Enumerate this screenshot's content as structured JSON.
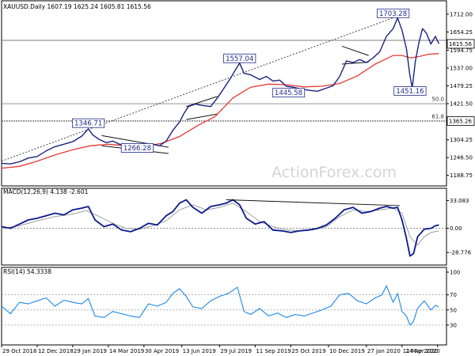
{
  "header": {
    "main": "XAUUSD.Daily  1607.19 1625.24 1605.81 1615.56",
    "macd": "MACD(12,26,9) 4.138 -2.601",
    "rsi": "RSI(14) 54.3338"
  },
  "watermark": "ActionForex.com",
  "colors": {
    "price": "#1a237e",
    "ema": "#e53935",
    "macd": "#0d1a8c",
    "signal": "#9e9e9e",
    "rsi": "#1e88e5",
    "bg": "#ffffff"
  },
  "chart_data": [
    {
      "type": "line",
      "name": "price",
      "ylim": [
        1170,
        1740
      ],
      "y_ticks": [
        "1712.00",
        "1654.25",
        "1594.75",
        "1537.00",
        "1479.25",
        "1421.50",
        "1365.26",
        "1304.25",
        "1246.50",
        "1188.75"
      ],
      "x_range": [
        0,
        100
      ],
      "x_ticks": [
        {
          "x": 0,
          "label": "29 Oct 2018"
        },
        {
          "x": 8,
          "label": "12 Dec 2018"
        },
        {
          "x": 16,
          "label": "29 Jan 2019"
        },
        {
          "x": 24,
          "label": "14 Mar 2019"
        },
        {
          "x": 32,
          "label": "30 Apr 2019"
        },
        {
          "x": 40.5,
          "label": "13 Jun 2019"
        },
        {
          "x": 49,
          "label": "29 Jul 2019"
        },
        {
          "x": 57,
          "label": "11 Sep 2019"
        },
        {
          "x": 65,
          "label": "25 Oct 2019"
        },
        {
          "x": 73.5,
          "label": "10 Dec 2019"
        },
        {
          "x": 82,
          "label": "27 Jan 2020"
        },
        {
          "x": 90,
          "label": "11 Mar 2020"
        },
        {
          "x": 98,
          "label": "24 Apr 2020"
        }
      ],
      "close": [
        [
          0,
          1228
        ],
        [
          2,
          1226
        ],
        [
          4,
          1233
        ],
        [
          6,
          1245
        ],
        [
          8,
          1250
        ],
        [
          10,
          1268
        ],
        [
          12,
          1282
        ],
        [
          14,
          1290
        ],
        [
          16,
          1298
        ],
        [
          18,
          1316
        ],
        [
          19.5,
          1340
        ],
        [
          20.5,
          1320
        ],
        [
          22,
          1305
        ],
        [
          23.5,
          1295
        ],
        [
          25,
          1300
        ],
        [
          26.5,
          1290
        ],
        [
          28.5,
          1283
        ],
        [
          30,
          1276
        ],
        [
          32,
          1282
        ],
        [
          34,
          1290
        ],
        [
          35.5,
          1285
        ],
        [
          37,
          1300
        ],
        [
          38.5,
          1335
        ],
        [
          40,
          1362
        ],
        [
          41,
          1390
        ],
        [
          42,
          1412
        ],
        [
          43.5,
          1420
        ],
        [
          45,
          1416
        ],
        [
          47,
          1412
        ],
        [
          48.5,
          1440
        ],
        [
          50,
          1472
        ],
        [
          51.5,
          1505
        ],
        [
          52.5,
          1530
        ],
        [
          53.5,
          1553
        ],
        [
          54.5,
          1520
        ],
        [
          56,
          1515
        ],
        [
          58,
          1500
        ],
        [
          59.5,
          1510
        ],
        [
          61,
          1495
        ],
        [
          62.5,
          1498
        ],
        [
          64,
          1478
        ],
        [
          65.5,
          1475
        ],
        [
          67,
          1470
        ],
        [
          69,
          1465
        ],
        [
          71,
          1462
        ],
        [
          73,
          1472
        ],
        [
          74.5,
          1480
        ],
        [
          76,
          1510
        ],
        [
          77.5,
          1560
        ],
        [
          79,
          1555
        ],
        [
          80.5,
          1565
        ],
        [
          82,
          1555
        ],
        [
          83.5,
          1570
        ],
        [
          85,
          1590
        ],
        [
          86.5,
          1640
        ],
        [
          88,
          1665
        ],
        [
          89,
          1700
        ],
        [
          90,
          1660
        ],
        [
          91,
          1600
        ],
        [
          91.7,
          1520
        ],
        [
          92.3,
          1472
        ],
        [
          93,
          1560
        ],
        [
          93.8,
          1620
        ],
        [
          94.6,
          1665
        ],
        [
          95.5,
          1650
        ],
        [
          96.5,
          1615
        ],
        [
          97.5,
          1640
        ],
        [
          98.3,
          1616
        ]
      ],
      "ema": [
        [
          0,
          1212
        ],
        [
          4,
          1218
        ],
        [
          8,
          1235
        ],
        [
          12,
          1255
        ],
        [
          16,
          1272
        ],
        [
          20,
          1285
        ],
        [
          24,
          1290
        ],
        [
          28,
          1285
        ],
        [
          32,
          1283
        ],
        [
          36,
          1293
        ],
        [
          40,
          1315
        ],
        [
          44,
          1350
        ],
        [
          48,
          1380
        ],
        [
          52,
          1440
        ],
        [
          56,
          1475
        ],
        [
          60,
          1485
        ],
        [
          64,
          1483
        ],
        [
          68,
          1476
        ],
        [
          72,
          1478
        ],
        [
          76,
          1487
        ],
        [
          80,
          1512
        ],
        [
          84,
          1550
        ],
        [
          88,
          1578
        ],
        [
          90,
          1578
        ],
        [
          92,
          1570
        ],
        [
          94,
          1575
        ],
        [
          96,
          1582
        ],
        [
          98.3,
          1584
        ]
      ],
      "trendline": [
        [
          0,
          1235
        ],
        [
          88,
          1700
        ]
      ],
      "channels": [
        [
          [
            22.5,
            1318
          ],
          [
            37.5,
            1280
          ]
        ],
        [
          [
            22.5,
            1285
          ],
          [
            37.5,
            1260
          ]
        ],
        [
          [
            41.5,
            1412
          ],
          [
            48.5,
            1445
          ]
        ],
        [
          [
            41.5,
            1370
          ],
          [
            48.5,
            1388
          ]
        ],
        [
          [
            76.5,
            1608
          ],
          [
            82.5,
            1578
          ]
        ],
        [
          [
            76.5,
            1550
          ],
          [
            82.5,
            1556
          ]
        ]
      ],
      "hlines": [
        {
          "y": 1627,
          "style": "thin"
        },
        {
          "y": 1421.5,
          "style": "thin"
        },
        {
          "y": 1365.26,
          "style": "dash"
        }
      ],
      "fib_labels": [
        {
          "text": "50.0",
          "y": 1430
        },
        {
          "text": "61.8",
          "y": 1374
        }
      ],
      "annotations": [
        {
          "text": "1703.28",
          "x": 88,
          "y": 1703.28
        },
        {
          "text": "1557.04",
          "x": 53.5,
          "y": 1557.04
        },
        {
          "text": "1445.58",
          "x": 64.5,
          "y": 1445.58
        },
        {
          "text": "1451.16",
          "x": 91.8,
          "y": 1451.16
        },
        {
          "text": "1346.71",
          "x": 19.5,
          "y": 1346.71
        },
        {
          "text": "1266.28",
          "x": 30.5,
          "y": 1266.28
        }
      ],
      "price_tags": [
        {
          "text": "1615.56",
          "y": 1615.56
        },
        {
          "text": "1365.26",
          "y": 1365.26
        }
      ]
    },
    {
      "type": "line",
      "name": "macd",
      "ylim": [
        -38,
        42
      ],
      "y_ticks": [
        "33.083",
        "0.00",
        "-28.776"
      ],
      "zero_line": 0,
      "macd": [
        [
          0,
          2
        ],
        [
          2,
          0
        ],
        [
          4,
          5
        ],
        [
          6,
          10
        ],
        [
          8,
          12
        ],
        [
          10,
          15
        ],
        [
          12,
          18
        ],
        [
          14,
          16
        ],
        [
          16,
          22
        ],
        [
          18,
          24
        ],
        [
          19.5,
          26
        ],
        [
          21,
          10
        ],
        [
          23,
          2
        ],
        [
          25,
          5
        ],
        [
          27,
          -2
        ],
        [
          29,
          -4
        ],
        [
          31,
          0
        ],
        [
          33,
          6
        ],
        [
          35,
          4
        ],
        [
          37,
          15
        ],
        [
          38.5,
          20
        ],
        [
          40,
          30
        ],
        [
          41.5,
          34
        ],
        [
          43,
          25
        ],
        [
          45,
          18
        ],
        [
          47,
          26
        ],
        [
          49,
          28
        ],
        [
          50.5,
          30
        ],
        [
          52,
          34
        ],
        [
          53.5,
          28
        ],
        [
          55,
          12
        ],
        [
          57,
          5
        ],
        [
          59,
          8
        ],
        [
          61,
          -2
        ],
        [
          63,
          -3
        ],
        [
          65,
          -5
        ],
        [
          67,
          -3
        ],
        [
          69,
          -2
        ],
        [
          71,
          0
        ],
        [
          73,
          4
        ],
        [
          75,
          12
        ],
        [
          77,
          22
        ],
        [
          79,
          25
        ],
        [
          81,
          18
        ],
        [
          83,
          20
        ],
        [
          85,
          24
        ],
        [
          86.5,
          26
        ],
        [
          88,
          24
        ],
        [
          89,
          25
        ],
        [
          90,
          10
        ],
        [
          91,
          -12
        ],
        [
          91.8,
          -33
        ],
        [
          92.6,
          -30
        ],
        [
          93.5,
          -10
        ],
        [
          95,
          -1
        ],
        [
          96.5,
          0
        ],
        [
          97.5,
          3
        ],
        [
          98.3,
          4
        ]
      ],
      "signal": [
        [
          0,
          0
        ],
        [
          4,
          3
        ],
        [
          8,
          9
        ],
        [
          12,
          14
        ],
        [
          16,
          17
        ],
        [
          19,
          21
        ],
        [
          22,
          14
        ],
        [
          25,
          6
        ],
        [
          28,
          0
        ],
        [
          31,
          -1
        ],
        [
          34,
          3
        ],
        [
          37,
          9
        ],
        [
          40,
          22
        ],
        [
          43,
          28
        ],
        [
          46,
          22
        ],
        [
          49,
          25
        ],
        [
          52,
          30
        ],
        [
          55,
          20
        ],
        [
          58,
          8
        ],
        [
          61,
          2
        ],
        [
          64,
          -2
        ],
        [
          67,
          -3
        ],
        [
          70,
          -2
        ],
        [
          73,
          2
        ],
        [
          76,
          14
        ],
        [
          79,
          22
        ],
        [
          82,
          20
        ],
        [
          85,
          22
        ],
        [
          88,
          24
        ],
        [
          90,
          18
        ],
        [
          91.8,
          -10
        ],
        [
          93.5,
          -20
        ],
        [
          95,
          -10
        ],
        [
          96.5,
          -5
        ],
        [
          98.3,
          -3
        ]
      ],
      "divergence": [
        [
          50.5,
          34
        ],
        [
          89.5,
          27
        ]
      ]
    },
    {
      "type": "line",
      "name": "rsi",
      "ylim": [
        10,
        100
      ],
      "y_ticks": [
        "100",
        "70",
        "50",
        "30"
      ],
      "levels": [
        70,
        50,
        30
      ],
      "rsi": [
        [
          0,
          55
        ],
        [
          2,
          45
        ],
        [
          4,
          60
        ],
        [
          6,
          58
        ],
        [
          8,
          62
        ],
        [
          10,
          66
        ],
        [
          12,
          55
        ],
        [
          14,
          63
        ],
        [
          16,
          60
        ],
        [
          18,
          58
        ],
        [
          19.5,
          65
        ],
        [
          21,
          42
        ],
        [
          23,
          40
        ],
        [
          25,
          48
        ],
        [
          27,
          45
        ],
        [
          29,
          42
        ],
        [
          31,
          40
        ],
        [
          33,
          58
        ],
        [
          35,
          55
        ],
        [
          37,
          60
        ],
        [
          38.5,
          72
        ],
        [
          40,
          78
        ],
        [
          41.5,
          68
        ],
        [
          43,
          54
        ],
        [
          45,
          52
        ],
        [
          47,
          62
        ],
        [
          49,
          68
        ],
        [
          51,
          72
        ],
        [
          53,
          80
        ],
        [
          54.5,
          48
        ],
        [
          56,
          44
        ],
        [
          58,
          52
        ],
        [
          60,
          42
        ],
        [
          62,
          46
        ],
        [
          64,
          40
        ],
        [
          66,
          44
        ],
        [
          68,
          42
        ],
        [
          70,
          46
        ],
        [
          72,
          50
        ],
        [
          74,
          55
        ],
        [
          76,
          70
        ],
        [
          78,
          72
        ],
        [
          80,
          62
        ],
        [
          82,
          58
        ],
        [
          84,
          66
        ],
        [
          85.5,
          70
        ],
        [
          86.5,
          82
        ],
        [
          88,
          60
        ],
        [
          89,
          72
        ],
        [
          90,
          48
        ],
        [
          91,
          42
        ],
        [
          91.8,
          30
        ],
        [
          92.5,
          34
        ],
        [
          93.5,
          52
        ],
        [
          95,
          62
        ],
        [
          96.5,
          50
        ],
        [
          97.5,
          56
        ],
        [
          98.3,
          54
        ]
      ]
    }
  ]
}
